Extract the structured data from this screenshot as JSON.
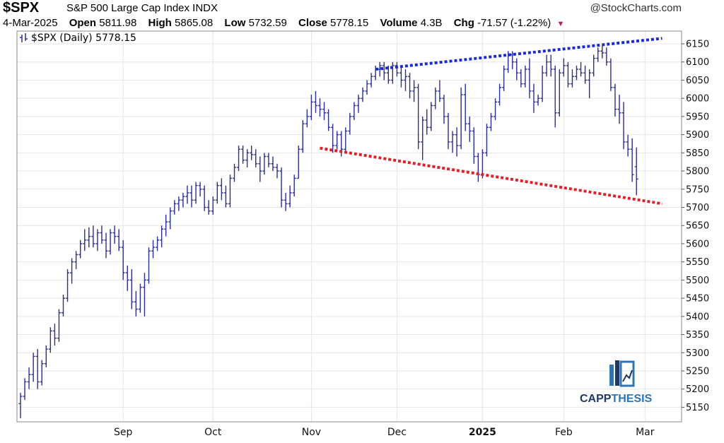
{
  "header": {
    "ticker": "$SPX",
    "subtitle": "S&P 500 Large Cap Index INDX",
    "brand": "@StockCharts.com",
    "date": "4-Mar-2025",
    "open_label": "Open",
    "open_value": "5811.98",
    "high_label": "High",
    "high_value": "5865.08",
    "low_label": "Low",
    "low_value": "5732.59",
    "close_label": "Close",
    "close_value": "5778.15",
    "volume_label": "Volume",
    "volume_value": "4.3B",
    "chg_label": "Chg",
    "chg_value": "-71.57 (-1.22%)",
    "chg_arrow": "▼"
  },
  "legend": {
    "icon": "bar-chart-icon",
    "text": "$SPX (Daily) 5778.15"
  },
  "watermark": {
    "text_dark": "CAPP",
    "text_light": "THESIS",
    "dark_color": "#1f3864",
    "light_color": "#2e75b6"
  },
  "colors": {
    "bars": "#2b2f8f",
    "upper_trend": "#1a2bd6",
    "lower_trend": "#e0202a",
    "grid": "#e6e6e6"
  },
  "chart_data": {
    "type": "ohlc",
    "title": "$SPX (Daily) 5778.15",
    "y_ticks": [
      5150,
      5200,
      5250,
      5300,
      5350,
      5400,
      5450,
      5500,
      5550,
      5600,
      5650,
      5700,
      5750,
      5800,
      5850,
      5900,
      5950,
      6000,
      6050,
      6100,
      6150
    ],
    "ylim": [
      5110,
      6185
    ],
    "y_axis_side": "right",
    "x_labels": [
      {
        "label": "Sep",
        "index": 24,
        "bold": false
      },
      {
        "label": "Oct",
        "index": 45,
        "bold": false
      },
      {
        "label": "Nov",
        "index": 68,
        "bold": false
      },
      {
        "label": "Dec",
        "index": 88,
        "bold": false
      },
      {
        "label": "2025",
        "index": 108,
        "bold": true
      },
      {
        "label": "Feb",
        "index": 127,
        "bold": false
      },
      {
        "label": "Mar",
        "index": 146,
        "bold": false
      }
    ],
    "n_slots": 151,
    "bars": [
      [
        5160,
        5190,
        5120,
        5180
      ],
      [
        5180,
        5230,
        5170,
        5220
      ],
      [
        5220,
        5260,
        5200,
        5240
      ],
      [
        5240,
        5300,
        5220,
        5290
      ],
      [
        5290,
        5310,
        5200,
        5220
      ],
      [
        5220,
        5280,
        5210,
        5270
      ],
      [
        5270,
        5320,
        5260,
        5310
      ],
      [
        5310,
        5370,
        5300,
        5360
      ],
      [
        5360,
        5380,
        5320,
        5340
      ],
      [
        5340,
        5420,
        5330,
        5410
      ],
      [
        5410,
        5460,
        5400,
        5450
      ],
      [
        5450,
        5530,
        5440,
        5520
      ],
      [
        5520,
        5560,
        5490,
        5550
      ],
      [
        5550,
        5580,
        5530,
        5570
      ],
      [
        5570,
        5610,
        5560,
        5600
      ],
      [
        5600,
        5640,
        5580,
        5610
      ],
      [
        5610,
        5645,
        5590,
        5620
      ],
      [
        5620,
        5650,
        5590,
        5600
      ],
      [
        5600,
        5640,
        5580,
        5630
      ],
      [
        5630,
        5650,
        5600,
        5610
      ],
      [
        5610,
        5630,
        5560,
        5580
      ],
      [
        5580,
        5640,
        5570,
        5630
      ],
      [
        5630,
        5650,
        5600,
        5620
      ],
      [
        5620,
        5640,
        5580,
        5590
      ],
      [
        5590,
        5610,
        5500,
        5520
      ],
      [
        5520,
        5540,
        5470,
        5500
      ],
      [
        5500,
        5530,
        5420,
        5440
      ],
      [
        5440,
        5470,
        5400,
        5420
      ],
      [
        5420,
        5490,
        5410,
        5480
      ],
      [
        5480,
        5520,
        5400,
        5500
      ],
      [
        5500,
        5590,
        5490,
        5580
      ],
      [
        5580,
        5610,
        5560,
        5590
      ],
      [
        5590,
        5620,
        5580,
        5610
      ],
      [
        5610,
        5650,
        5590,
        5640
      ],
      [
        5640,
        5680,
        5620,
        5660
      ],
      [
        5660,
        5700,
        5640,
        5690
      ],
      [
        5690,
        5720,
        5680,
        5710
      ],
      [
        5710,
        5730,
        5690,
        5720
      ],
      [
        5720,
        5740,
        5700,
        5730
      ],
      [
        5730,
        5760,
        5710,
        5740
      ],
      [
        5740,
        5760,
        5700,
        5720
      ],
      [
        5720,
        5770,
        5710,
        5760
      ],
      [
        5760,
        5770,
        5730,
        5750
      ],
      [
        5750,
        5760,
        5690,
        5700
      ],
      [
        5700,
        5720,
        5680,
        5690
      ],
      [
        5690,
        5730,
        5680,
        5720
      ],
      [
        5720,
        5770,
        5710,
        5760
      ],
      [
        5760,
        5780,
        5720,
        5740
      ],
      [
        5740,
        5760,
        5700,
        5710
      ],
      [
        5710,
        5790,
        5700,
        5780
      ],
      [
        5780,
        5820,
        5770,
        5810
      ],
      [
        5810,
        5870,
        5800,
        5860
      ],
      [
        5860,
        5870,
        5820,
        5830
      ],
      [
        5830,
        5860,
        5810,
        5850
      ],
      [
        5850,
        5870,
        5830,
        5845
      ],
      [
        5845,
        5860,
        5810,
        5820
      ],
      [
        5820,
        5840,
        5770,
        5800
      ],
      [
        5800,
        5850,
        5790,
        5840
      ],
      [
        5840,
        5850,
        5810,
        5820
      ],
      [
        5820,
        5840,
        5800,
        5810
      ],
      [
        5810,
        5820,
        5780,
        5800
      ],
      [
        5800,
        5810,
        5700,
        5720
      ],
      [
        5720,
        5740,
        5690,
        5710
      ],
      [
        5710,
        5760,
        5700,
        5740
      ],
      [
        5740,
        5790,
        5730,
        5780
      ],
      [
        5780,
        5870,
        5780,
        5860
      ],
      [
        5860,
        5940,
        5850,
        5930
      ],
      [
        5930,
        5970,
        5920,
        5950
      ],
      [
        5950,
        6010,
        5940,
        5990
      ],
      [
        5990,
        6020,
        5960,
        5980
      ],
      [
        5980,
        6000,
        5950,
        5970
      ],
      [
        5970,
        5990,
        5940,
        5960
      ],
      [
        5960,
        5970,
        5910,
        5920
      ],
      [
        5920,
        5930,
        5850,
        5870
      ],
      [
        5870,
        5910,
        5860,
        5900
      ],
      [
        5900,
        5910,
        5840,
        5860
      ],
      [
        5860,
        5920,
        5850,
        5910
      ],
      [
        5910,
        5960,
        5900,
        5950
      ],
      [
        5950,
        5990,
        5940,
        5980
      ],
      [
        5980,
        6010,
        5960,
        6000
      ],
      [
        6000,
        6030,
        5990,
        6020
      ],
      [
        6020,
        6050,
        6010,
        6040
      ],
      [
        6040,
        6070,
        6030,
        6060
      ],
      [
        6060,
        6090,
        6050,
        6080
      ],
      [
        6080,
        6100,
        6060,
        6090
      ],
      [
        6090,
        6100,
        6050,
        6070
      ],
      [
        6070,
        6090,
        6040,
        6050
      ],
      [
        6050,
        6100,
        6040,
        6090
      ],
      [
        6090,
        6100,
        6060,
        6070
      ],
      [
        6070,
        6090,
        6030,
        6050
      ],
      [
        6050,
        6080,
        6020,
        6060
      ],
      [
        6060,
        6070,
        6000,
        6020
      ],
      [
        6020,
        6050,
        5990,
        6030
      ],
      [
        6030,
        6040,
        5860,
        5880
      ],
      [
        5880,
        5950,
        5830,
        5940
      ],
      [
        5940,
        5970,
        5900,
        5920
      ],
      [
        5920,
        5990,
        5910,
        5980
      ],
      [
        5980,
        6030,
        5970,
        6020
      ],
      [
        6020,
        6050,
        5990,
        6000
      ],
      [
        6000,
        6010,
        5930,
        5950
      ],
      [
        5950,
        5960,
        5860,
        5880
      ],
      [
        5880,
        5910,
        5850,
        5900
      ],
      [
        5900,
        5920,
        5840,
        5870
      ],
      [
        5870,
        6030,
        5860,
        6010
      ],
      [
        6010,
        6040,
        5910,
        5930
      ],
      [
        5930,
        5950,
        5880,
        5910
      ],
      [
        5910,
        5920,
        5820,
        5840
      ],
      [
        5840,
        5850,
        5770,
        5790
      ],
      [
        5790,
        5860,
        5780,
        5850
      ],
      [
        5850,
        5930,
        5840,
        5920
      ],
      [
        5920,
        5960,
        5910,
        5950
      ],
      [
        5950,
        6000,
        5940,
        5990
      ],
      [
        5990,
        6040,
        5980,
        6030
      ],
      [
        6030,
        6090,
        6020,
        6080
      ],
      [
        6080,
        6130,
        6070,
        6120
      ],
      [
        6120,
        6130,
        6080,
        6100
      ],
      [
        6100,
        6110,
        6050,
        6070
      ],
      [
        6070,
        6080,
        6030,
        6040
      ],
      [
        6040,
        6090,
        6030,
        6080
      ],
      [
        6080,
        6110,
        6000,
        6020
      ],
      [
        6020,
        6040,
        5960,
        5990
      ],
      [
        5990,
        6010,
        5980,
        6000
      ],
      [
        6000,
        6090,
        5990,
        6070
      ],
      [
        6070,
        6120,
        6060,
        6100
      ],
      [
        6100,
        6120,
        6060,
        6080
      ],
      [
        6080,
        6090,
        5920,
        5960
      ],
      [
        5960,
        6080,
        5950,
        6070
      ],
      [
        6070,
        6110,
        6060,
        6090
      ],
      [
        6090,
        6100,
        6030,
        6040
      ],
      [
        6040,
        6080,
        6030,
        6060
      ],
      [
        6060,
        6090,
        6050,
        6080
      ],
      [
        6080,
        6100,
        6060,
        6070
      ],
      [
        6070,
        6090,
        6040,
        6050
      ],
      [
        6050,
        6080,
        6000,
        6070
      ],
      [
        6070,
        6120,
        6060,
        6110
      ],
      [
        6110,
        6140,
        6100,
        6130
      ],
      [
        6130,
        6145,
        6110,
        6125
      ],
      [
        6125,
        6140,
        6090,
        6100
      ],
      [
        6100,
        6110,
        6020,
        6030
      ],
      [
        6030,
        6040,
        5950,
        5970
      ],
      [
        5970,
        6010,
        5930,
        5960
      ],
      [
        5960,
        5990,
        5860,
        5880
      ],
      [
        5880,
        5900,
        5840,
        5860
      ],
      [
        5860,
        5890,
        5770,
        5790
      ],
      [
        5812,
        5865,
        5733,
        5778
      ]
    ],
    "trendlines": [
      {
        "name": "upper",
        "color": "#1a2bd6",
        "from": {
          "index": 83,
          "value": 6080
        },
        "to": {
          "index": 150,
          "value": 6165
        }
      },
      {
        "name": "lower",
        "color": "#e0202a",
        "from": {
          "index": 70,
          "value": 5863
        },
        "to": {
          "index": 150,
          "value": 5710
        }
      }
    ],
    "grid": true,
    "legend_position": "top-left"
  }
}
